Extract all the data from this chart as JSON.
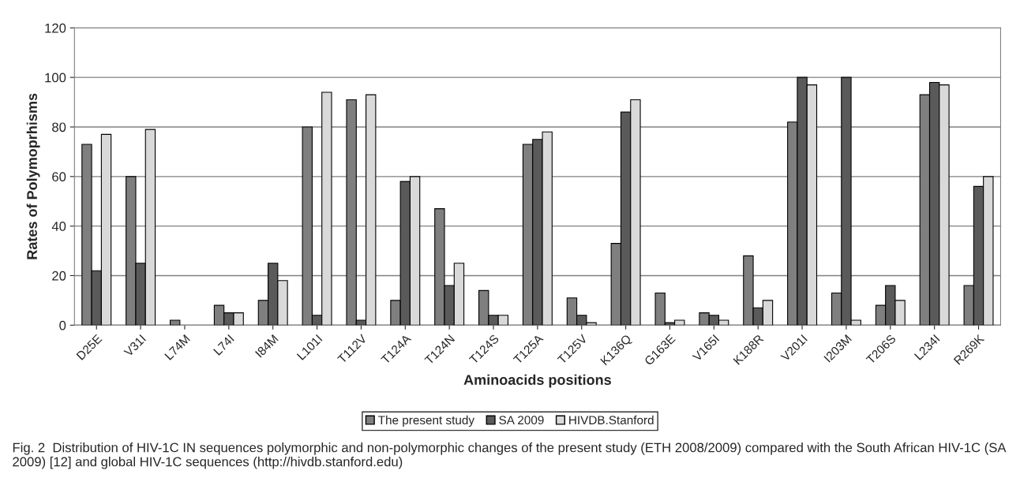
{
  "chart_data": {
    "type": "bar",
    "categories": [
      "D25E",
      "V31I",
      "L74M",
      "L74I",
      "I84M",
      "L101I",
      "T112V",
      "T124A",
      "T124N",
      "T124S",
      "T125A",
      "T125V",
      "K136Q",
      "G163E",
      "V165I",
      "K188R",
      "V201I",
      "I203M",
      "T206S",
      "L234I",
      "R269K"
    ],
    "series": [
      {
        "name": "The present study",
        "color": "#7f7f7f",
        "values": [
          73,
          60,
          2,
          8,
          10,
          80,
          91,
          10,
          47,
          14,
          73,
          11,
          33,
          13,
          5,
          28,
          82,
          13,
          8,
          93,
          16
        ]
      },
      {
        "name": "SA 2009",
        "color": "#5a5a5a",
        "values": [
          22,
          25,
          null,
          5,
          25,
          4,
          2,
          58,
          16,
          4,
          75,
          4,
          86,
          1,
          4,
          7,
          100,
          100,
          16,
          98,
          56
        ]
      },
      {
        "name": "HIVDB.Stanford",
        "color": "#d9d9d9",
        "values": [
          77,
          79,
          null,
          5,
          18,
          94,
          93,
          60,
          25,
          4,
          78,
          1,
          91,
          2,
          2,
          10,
          97,
          2,
          10,
          97,
          60
        ]
      }
    ],
    "xlabel": "Aminoacids positions",
    "ylabel": "Rates of Polymoprhisms",
    "ylim": [
      0,
      120
    ],
    "yticks": [
      0,
      20,
      40,
      60,
      80,
      100,
      120
    ],
    "grid": "y",
    "legend": "bottom",
    "annotations": [
      "Fig. 2  Distribution of HIV-1C IN sequences polymorphic and non-polymorphic changes of the present study (ETH 2008/2009) compared with the South African HIV-1C (SA 2009) [12] and global HIV-1C sequences (http://hivdb.stanford.edu)"
    ]
  }
}
